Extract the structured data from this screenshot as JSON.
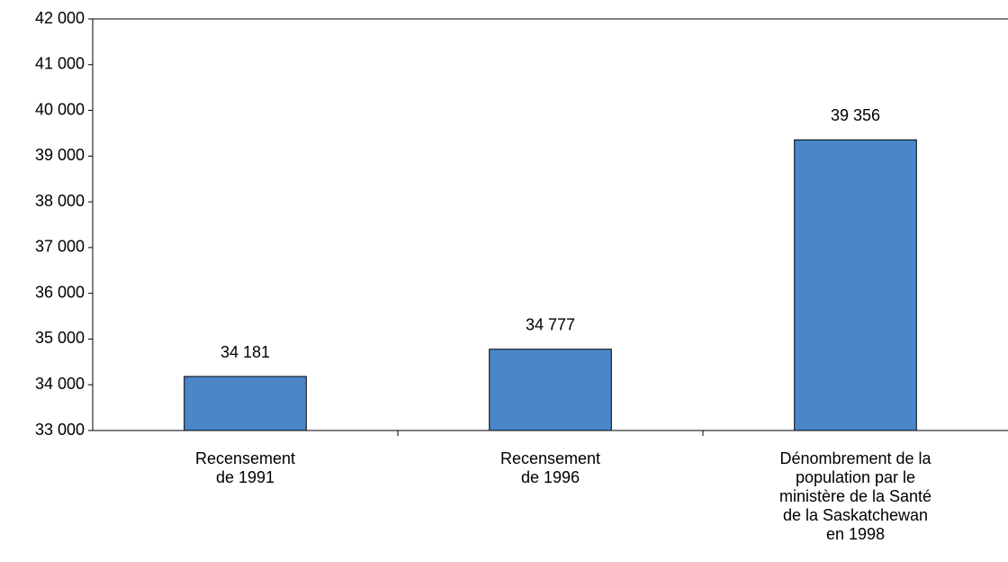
{
  "chart_data": {
    "type": "bar",
    "categories": [
      "Recensement\nde 1991",
      "Recensement\nde 1996",
      "Dénombrement de la\npopulation par le\nministère de la Santé\nde la Saskatchewan\nen 1998"
    ],
    "values": [
      34181,
      34777,
      39356
    ],
    "value_labels": [
      "34 181",
      "34 777",
      "39 356"
    ],
    "color": "#4a86c8",
    "ylim": [
      33000,
      42000
    ],
    "yticks": [
      {
        "value": 33000,
        "label": "33 000"
      },
      {
        "value": 34000,
        "label": "34 000"
      },
      {
        "value": 35000,
        "label": "35 000"
      },
      {
        "value": 36000,
        "label": "36 000"
      },
      {
        "value": 37000,
        "label": "37 000"
      },
      {
        "value": 38000,
        "label": "38 000"
      },
      {
        "value": 39000,
        "label": "39 000"
      },
      {
        "value": 40000,
        "label": "40 000"
      },
      {
        "value": 41000,
        "label": "41 000"
      },
      {
        "value": 42000,
        "label": "42 000"
      }
    ],
    "grid": false
  }
}
